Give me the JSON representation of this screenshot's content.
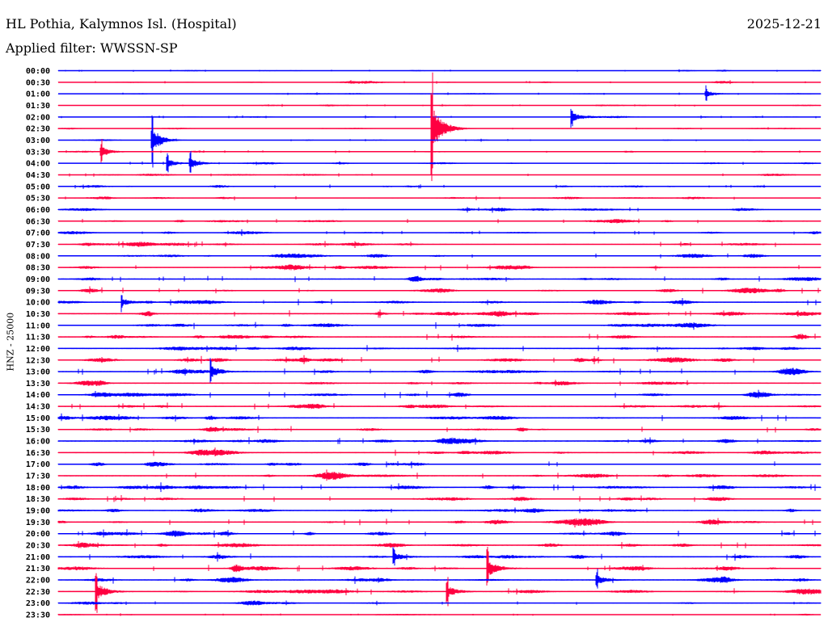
{
  "header": {
    "station": "HL Pothia, Kalymnos Isl. (Hospital)",
    "date": "2025-12-21",
    "filter": "Applied filter: WWSSN-SP"
  },
  "chart_data": {
    "type": "line",
    "title": "HL Pothia, Kalymnos Isl. (Hospital)",
    "ylabel": "HNZ - 25000",
    "xlabel": "",
    "minutes_per_line": 30,
    "colors": {
      "even": "#0000ff",
      "odd": "#ff0040"
    },
    "rows": [
      "00:00",
      "00:30",
      "01:00",
      "01:30",
      "02:00",
      "02:30",
      "03:00",
      "03:30",
      "04:00",
      "04:30",
      "05:00",
      "05:30",
      "06:00",
      "06:30",
      "07:00",
      "07:30",
      "08:00",
      "08:30",
      "09:00",
      "09:30",
      "10:00",
      "10:30",
      "11:00",
      "11:30",
      "12:00",
      "12:30",
      "13:00",
      "13:30",
      "14:00",
      "14:30",
      "15:00",
      "15:30",
      "16:00",
      "16:30",
      "17:00",
      "17:30",
      "18:00",
      "18:30",
      "19:00",
      "19:30",
      "20:00",
      "20:30",
      "21:00",
      "21:30",
      "22:00",
      "22:30",
      "23:00",
      "23:30"
    ],
    "noise_level": [
      0.3,
      0.35,
      0.3,
      0.3,
      0.35,
      0.35,
      0.3,
      0.35,
      0.4,
      0.45,
      0.5,
      0.55,
      0.55,
      0.6,
      0.55,
      0.7,
      0.75,
      0.75,
      0.8,
      0.8,
      0.85,
      0.9,
      0.9,
      0.85,
      0.9,
      0.9,
      0.85,
      0.85,
      0.9,
      0.85,
      0.85,
      0.85,
      0.9,
      0.85,
      0.75,
      0.85,
      0.9,
      0.8,
      0.8,
      0.85,
      0.85,
      0.85,
      0.9,
      0.9,
      0.85,
      0.8,
      0.5,
      0.3
    ],
    "events": [
      {
        "row": 6,
        "minute": 3.7,
        "amplitude": 3.0
      },
      {
        "row": 5,
        "minute": 14.7,
        "amplitude": 6.0
      },
      {
        "row": 7,
        "minute": 1.7,
        "amplitude": 1.2
      },
      {
        "row": 8,
        "minute": 4.3,
        "amplitude": 1.0
      },
      {
        "row": 8,
        "minute": 5.2,
        "amplitude": 1.2
      },
      {
        "row": 4,
        "minute": 20.2,
        "amplitude": 1.0
      },
      {
        "row": 2,
        "minute": 25.5,
        "amplitude": 0.8
      },
      {
        "row": 20,
        "minute": 2.5,
        "amplitude": 0.9
      },
      {
        "row": 26,
        "minute": 6.0,
        "amplitude": 1.4
      },
      {
        "row": 42,
        "minute": 13.2,
        "amplitude": 1.0
      },
      {
        "row": 43,
        "minute": 16.9,
        "amplitude": 2.0
      },
      {
        "row": 44,
        "minute": 21.2,
        "amplitude": 1.1
      },
      {
        "row": 45,
        "minute": 1.5,
        "amplitude": 2.2
      },
      {
        "row": 45,
        "minute": 15.3,
        "amplitude": 1.4
      }
    ]
  }
}
